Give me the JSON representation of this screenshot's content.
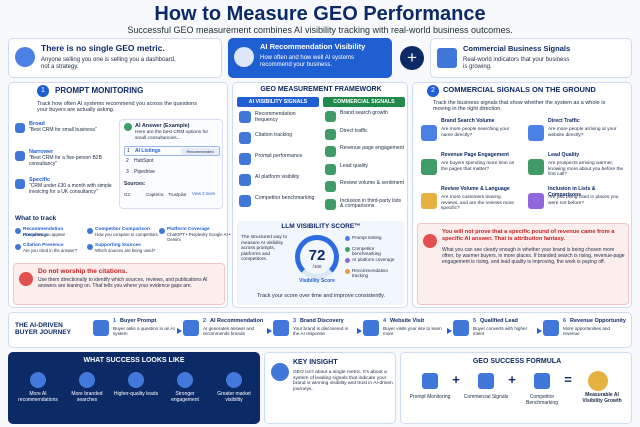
{
  "header": {
    "title": "How to Measure GEO Performance",
    "subtitle": "Successful GEO measurement combines AI visibility tracking with real-world business outcomes."
  },
  "intro": {
    "heading": "There is no single GEO metric.",
    "text": "Anyone selling you one is selling you a dashboard, not a strategy."
  },
  "pillar_ai": {
    "title": "AI Recommendation Visibility",
    "text": "How often and how well AI systems recommend your business."
  },
  "pillar_commercial": {
    "title": "Commercial Business Signals",
    "text": "Real-world indicators that your business is growing."
  },
  "plus": "+",
  "prompt_monitoring": {
    "number": "1",
    "title": "PROMPT MONITORING",
    "description": "Track how often AI systems recommend you across the questions your buyers are actually asking.",
    "prompts": [
      {
        "label": "Broad",
        "text": "\"Best CRM for small business\""
      },
      {
        "label": "Narrower",
        "text": "\"Best CRM for a five-person B2B consultancy\""
      },
      {
        "label": "Specific",
        "text": "\"CRM under £30 a month with simple invoicing for a UK consultancy\""
      }
    ],
    "ai_answer": {
      "title": "AI Answer (Example)",
      "intro": "Here are the best CRM options for small consultancies...",
      "items": [
        {
          "rank": "1",
          "name": "AI Listings",
          "badge": "Recommended"
        },
        {
          "rank": "2",
          "name": "HubSpot"
        },
        {
          "rank": "3",
          "name": "Pipedrive"
        }
      ],
      "sources_label": "Sources:",
      "sources": [
        "G2",
        "Capterra",
        "Trustpilot"
      ],
      "more": "View 3 more"
    },
    "track_title": "What to track",
    "track": [
      {
        "title": "Recommendation Frequency",
        "text": "How often you appear"
      },
      {
        "title": "Competitor Comparison",
        "text": "How you compare to competitors"
      },
      {
        "title": "Platform Coverage",
        "text": "ChatGPT • Perplexity Google AI • Gemini"
      },
      {
        "title": "Citation Presence",
        "text": "Are you cited in the answer?"
      },
      {
        "title": "Supporting Sources",
        "text": "Which sources are being used?"
      }
    ],
    "warning": {
      "title": "Do not worship the citations.",
      "text": "Use them directionally to identify which sources, reviews, and publications AI answers are leaning on. That tells you where your evidence gaps are."
    }
  },
  "framework": {
    "title": "GEO MEASUREMENT FRAMEWORK",
    "ai_heading": "AI VISIBILITY SIGNALS",
    "ai_signals": [
      "Recommendation frequency",
      "Citation tracking",
      "Prompt performance",
      "AI platform visibility",
      "Competitor benchmarking"
    ],
    "commercial_heading": "COMMERCIAL SIGNALS",
    "commercial_signals": [
      "Brand search growth",
      "Direct traffic",
      "Revenue page engagement",
      "Lead quality",
      "Review volume & sentiment",
      "Inclusion in third-party lists & comparisons"
    ],
    "score": {
      "title": "LLM VISIBILITY SCORE™",
      "text": "The structured way to measure AI visibility across prompts, platforms and competitors.",
      "value": "72",
      "scale": "/100",
      "label": "Visibility Score",
      "legend": [
        "Prompt testing",
        "Competitor benchmarking",
        "AI platform coverage",
        "Recommendation tracking"
      ],
      "footer": "Track your score over time and improve consistently."
    }
  },
  "commercial": {
    "number": "2",
    "title": "COMMERCIAL SIGNALS ON THE GROUND",
    "description": "Track the business signals that show whether the system as a whole is moving in the right direction.",
    "cards": [
      {
        "title": "Brand Search Volume",
        "text": "Are more people searching your name directly?"
      },
      {
        "title": "Direct Traffic",
        "text": "Are more people arriving at your website directly?"
      },
      {
        "title": "Revenue Page Engagement",
        "text": "Are buyers spending more time on the pages that matter?"
      },
      {
        "title": "Lead Quality",
        "text": "Are prospects arriving warmer, knowing more about you before the first call?"
      },
      {
        "title": "Review Volume & Language",
        "text": "Are more customers leaving reviews, and are the reviews more specific?"
      },
      {
        "title": "Inclusion in Lists & Comparisons",
        "text": "Are you being cited in places you were not before?"
      }
    ],
    "warning": {
      "title": "You will not prove that a specific pound of revenue came from a specific AI answer. That is attribution fantasy.",
      "text": "What you can see clearly enough is whether your brand is being chosen more often, by warmer buyers, in more places. If branded search is rising, revenue-page engagement is rising, and lead quality is improving, the work is paying off."
    }
  },
  "journey": {
    "title": "THE AI-DRIVEN BUYER JOURNEY",
    "steps": [
      {
        "number": "1",
        "title": "Buyer Prompt",
        "text": "Buyer asks a question in an AI system"
      },
      {
        "number": "2",
        "title": "AI Recommendation",
        "text": "AI generates answer and recommends brands"
      },
      {
        "number": "3",
        "title": "Brand Discovery",
        "text": "Your brand is discovered in the AI response"
      },
      {
        "number": "4",
        "title": "Website Visit",
        "text": "Buyer visits your site to learn more"
      },
      {
        "number": "5",
        "title": "Qualified Lead",
        "text": "Buyer converts with higher intent"
      },
      {
        "number": "6",
        "title": "Revenue Opportunity",
        "text": "More opportunities and revenue"
      }
    ]
  },
  "success": {
    "title": "WHAT SUCCESS LOOKS LIKE",
    "items": [
      "More AI recommendations",
      "More branded searches",
      "Higher-quality leads",
      "Stronger engagement",
      "Greater market visibility"
    ]
  },
  "insight": {
    "title": "KEY INSIGHT",
    "text": "GEO isn't about a single metric. It's about a system of leading signals that indicate your brand is winning visibility and trust in AI-driven journeys."
  },
  "formula": {
    "title": "GEO SUCCESS FORMULA",
    "items": [
      "Prompt Monitoring",
      "Commercial Signals",
      "Competitor Benchmarking"
    ],
    "operators": [
      "+",
      "+",
      "="
    ],
    "result": "Measurable AI Visibility Growth"
  }
}
